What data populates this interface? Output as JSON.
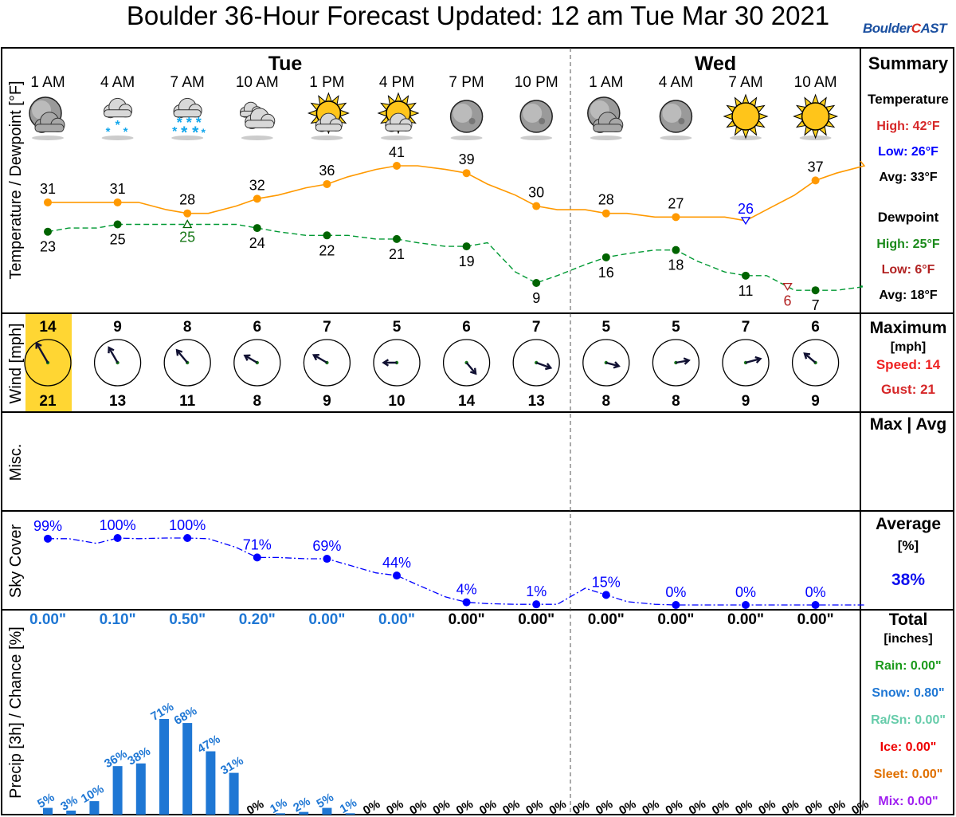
{
  "title": "Boulder 36-Hour Forecast Updated: 12 am Tue Mar 30 2021",
  "logo": {
    "part1": "Boulder",
    "part2": "C",
    "part3": "AST"
  },
  "days": [
    {
      "label": "Tue"
    },
    {
      "label": "Wed"
    }
  ],
  "panels": {
    "temp_label": "Temperature / Dewpoint [°F]",
    "wind_label": "Wind [mph]",
    "misc_label": "Misc.",
    "sky_label": "Sky Cover",
    "precip_label": "Precip [3h] / Chance [%]"
  },
  "summary": {
    "title": "Summary",
    "temperature_heading": "Temperature",
    "temp_high": "High: 42°F",
    "temp_low": "Low: 26°F",
    "temp_avg": "Avg: 33°F",
    "dewpoint_heading": "Dewpoint",
    "dew_high": "High: 25°F",
    "dew_low": "Low: 6°F",
    "dew_avg": "Avg: 18°F",
    "wind_title": "Maximum",
    "wind_units": "[mph]",
    "wind_speed": "Speed: 14",
    "wind_gust": "Gust: 21",
    "misc_title": "Max | Avg",
    "sky_title": "Average",
    "sky_units": "[%]",
    "sky_avg": "38%",
    "precip_title": "Total",
    "precip_units": "[inches]",
    "rain": "Rain: 0.00\"",
    "snow": "Snow: 0.80\"",
    "rasn": "Ra/Sn: 0.00\"",
    "ice": "Ice: 0.00\"",
    "sleet": "Sleet: 0.00\"",
    "mix": "Mix: 0.00\""
  },
  "colors": {
    "temp": "#ff9900",
    "dew": "#009933",
    "dew_point": "#006400",
    "sky": "#0000ff",
    "precip_bar": "#1f77d4",
    "high": "#d62728",
    "low": "#0000ff",
    "rain": "#1a9a1a",
    "snow": "#1f77d4",
    "rasn": "#66ccaa",
    "ice": "#ee0000",
    "sleet": "#e07000",
    "mix": "#a020f0",
    "wind_highlight": "#ffd633"
  },
  "chart_data": {
    "type": "line",
    "times": [
      "1 AM",
      "4 AM",
      "7 AM",
      "10 AM",
      "1 PM",
      "4 PM",
      "7 PM",
      "10 PM",
      "1 AM",
      "4 AM",
      "7 AM",
      "10 AM"
    ],
    "icons": [
      "moon-cloudy-icon",
      "snow-cloud-icon",
      "heavy-snow-icon",
      "cloudy-icon",
      "sun-cloud-icon",
      "sun-cloud-icon",
      "moon-icon",
      "moon-icon",
      "moon-cloudy-icon",
      "moon-icon",
      "sun-icon",
      "sun-icon"
    ],
    "temperature": {
      "values": [
        31,
        31,
        28,
        32,
        36,
        41,
        39,
        30,
        28,
        27,
        26,
        37
      ],
      "line_x": [
        0,
        1,
        1.3,
        1.7,
        2,
        2.3,
        2.7,
        3,
        3.3,
        3.7,
        4,
        4.3,
        4.7,
        5,
        5.3,
        5.7,
        6,
        6.3,
        6.7,
        7,
        7.3,
        7.7,
        8,
        8.3,
        8.7,
        9,
        9.3,
        9.7,
        10,
        10.3,
        10.7,
        11,
        11.3,
        11.7
      ],
      "line_y": [
        31,
        31,
        31,
        29,
        28,
        28,
        30,
        32,
        33,
        35,
        36,
        38,
        40,
        41,
        41,
        40,
        39,
        36,
        33,
        30,
        29,
        29,
        28,
        28,
        27,
        27,
        27,
        27,
        26,
        29,
        33,
        37,
        39,
        41
      ]
    },
    "dewpoint": {
      "values": [
        23,
        25,
        25,
        24,
        22,
        21,
        19,
        9,
        16,
        18,
        11,
        7
      ],
      "line_x": [
        0,
        0.3,
        0.7,
        1,
        1.3,
        1.7,
        2,
        2.3,
        2.7,
        3,
        3.3,
        3.7,
        4,
        4.3,
        4.7,
        5,
        5.3,
        5.7,
        6,
        6.3,
        6.7,
        7,
        7.3,
        7.7,
        8,
        8.3,
        8.7,
        9,
        9.3,
        9.7,
        10,
        10.3,
        10.7,
        11,
        11.3,
        11.7
      ],
      "line_y": [
        23,
        24,
        24,
        25,
        25,
        25,
        25,
        25,
        25,
        24,
        23,
        22,
        22,
        22,
        21,
        21,
        20,
        19,
        19,
        20,
        12,
        9,
        11,
        14,
        16,
        17,
        18,
        18,
        15,
        12,
        11,
        11,
        7,
        7,
        7,
        8
      ]
    },
    "temp_high": 42,
    "temp_low": 26,
    "dew_high": 25,
    "dew_low": 6,
    "temp_low_marker": {
      "x": 10,
      "label": "26"
    },
    "dew_high_marker": {
      "x": 2,
      "label": "25"
    },
    "dew_low_marker": {
      "x": 10.6,
      "label": "6"
    },
    "temp_ylim": [
      0,
      50
    ],
    "wind": {
      "speed": [
        14,
        9,
        8,
        6,
        7,
        5,
        6,
        7,
        5,
        5,
        7,
        6
      ],
      "gust": [
        21,
        13,
        11,
        8,
        9,
        10,
        14,
        13,
        8,
        8,
        9,
        9
      ],
      "direction_deg": [
        330,
        330,
        320,
        300,
        300,
        270,
        140,
        110,
        105,
        80,
        75,
        310
      ]
    },
    "sky_cover": {
      "values": [
        99,
        100,
        100,
        71,
        69,
        44,
        4,
        1,
        15,
        0,
        0,
        0
      ],
      "labels": [
        "99%",
        "100%",
        "100%",
        "71%",
        "69%",
        "44%",
        "4%",
        "1%",
        "15%",
        "0%",
        "0%",
        "0%"
      ],
      "line_x": [
        0,
        0.3,
        0.7,
        1,
        1.3,
        1.7,
        2,
        2.3,
        2.7,
        3,
        3.3,
        3.7,
        4,
        4.3,
        4.7,
        5,
        5.3,
        5.7,
        6,
        6.3,
        6.7,
        7,
        7.3,
        7.7,
        8,
        8.3,
        8.7,
        9,
        9.3,
        9.7,
        10,
        10.3,
        10.7,
        11,
        11.3,
        11.7
      ],
      "line_y": [
        99,
        99,
        92,
        100,
        99,
        100,
        100,
        99,
        86,
        71,
        71,
        69,
        69,
        60,
        48,
        44,
        30,
        12,
        4,
        2,
        1,
        1,
        1,
        25,
        15,
        5,
        1,
        0,
        0,
        0,
        0,
        0,
        0,
        0,
        0,
        0
      ],
      "ylim": [
        0,
        100
      ]
    },
    "precip_amount": {
      "labels": [
        "0.00\"",
        "0.10\"",
        "0.50\"",
        "0.20\"",
        "0.00\"",
        "0.00\"",
        "0.00\"",
        "0.00\"",
        "0.00\"",
        "0.00\"",
        "0.00\"",
        "0.00\""
      ],
      "highlighted": [
        true,
        true,
        true,
        true,
        true,
        true,
        false,
        false,
        false,
        false,
        false,
        false
      ]
    },
    "precip_chance": {
      "values": [
        5,
        3,
        10,
        36,
        38,
        71,
        68,
        47,
        31,
        0,
        1,
        2,
        5,
        1,
        0,
        0,
        0,
        0,
        0,
        0,
        0,
        0,
        0,
        0,
        0,
        0,
        0,
        0,
        0,
        0,
        0,
        0,
        0,
        0,
        0,
        0
      ],
      "labels": [
        "5%",
        "3%",
        "10%",
        "36%",
        "38%",
        "71%",
        "68%",
        "47%",
        "31%",
        "0%",
        "1%",
        "2%",
        "5%",
        "1%",
        "0%",
        "0%",
        "0%",
        "0%",
        "0%",
        "0%",
        "0%",
        "0%",
        "0%",
        "0%",
        "0%",
        "0%",
        "0%",
        "0%",
        "0%",
        "0%",
        "0%",
        "0%",
        "0%",
        "0%",
        "0%",
        "0%"
      ],
      "ylim": [
        0,
        100
      ]
    }
  }
}
